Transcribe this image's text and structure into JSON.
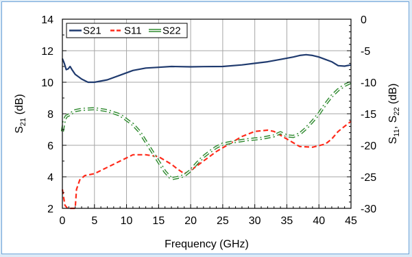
{
  "chart_data": {
    "type": "line",
    "xlabel": "Frequency (GHz)",
    "ylabel_left": {
      "base": "S",
      "sub": "21",
      "unit": " (dB)"
    },
    "ylabel_right": {
      "base1": "S",
      "sub1": "11",
      "sep": ", ",
      "base2": "S",
      "sub2": "22",
      "unit": " (dB)"
    },
    "xlim": [
      0,
      45
    ],
    "ylim_left": [
      2,
      14
    ],
    "ylim_right": [
      -30,
      0
    ],
    "x_ticks": [
      0,
      5,
      10,
      15,
      20,
      25,
      30,
      35,
      40,
      45
    ],
    "y_left_ticks": [
      2,
      4,
      6,
      8,
      10,
      12,
      14
    ],
    "y_right_ticks": [
      -30,
      -25,
      -20,
      -15,
      -10,
      -5,
      0
    ],
    "grid": true,
    "legend_position": "top-left",
    "series": [
      {
        "name": "S21",
        "axis": "left",
        "color": "#1f3a6e",
        "style": "solid",
        "points": [
          [
            0,
            11.5
          ],
          [
            0.3,
            11.2
          ],
          [
            0.6,
            10.8
          ],
          [
            0.9,
            10.85
          ],
          [
            1.2,
            11.0
          ],
          [
            1.5,
            10.8
          ],
          [
            2,
            10.5
          ],
          [
            3,
            10.2
          ],
          [
            4,
            10.0
          ],
          [
            5,
            10.0
          ],
          [
            7,
            10.15
          ],
          [
            9,
            10.45
          ],
          [
            11,
            10.75
          ],
          [
            13,
            10.9
          ],
          [
            15,
            10.95
          ],
          [
            17,
            11.0
          ],
          [
            20,
            10.98
          ],
          [
            22,
            10.99
          ],
          [
            25,
            11.0
          ],
          [
            28,
            11.1
          ],
          [
            30,
            11.2
          ],
          [
            32,
            11.3
          ],
          [
            34,
            11.45
          ],
          [
            36,
            11.6
          ],
          [
            37,
            11.7
          ],
          [
            38,
            11.75
          ],
          [
            39,
            11.7
          ],
          [
            40,
            11.6
          ],
          [
            41,
            11.45
          ],
          [
            42,
            11.3
          ],
          [
            43,
            11.05
          ],
          [
            44,
            11.02
          ],
          [
            45,
            11.1
          ]
        ]
      },
      {
        "name": "S11",
        "axis": "right",
        "color": "#ff2a1a",
        "style": "dashed",
        "points": [
          [
            0,
            -27
          ],
          [
            0.4,
            -29.5
          ],
          [
            0.8,
            -30
          ],
          [
            2,
            -30
          ],
          [
            2.2,
            -27
          ],
          [
            2.7,
            -25.5
          ],
          [
            3.5,
            -24.8
          ],
          [
            5,
            -24.5
          ],
          [
            7,
            -23.5
          ],
          [
            9,
            -22.5
          ],
          [
            11,
            -21.5
          ],
          [
            13,
            -21.5
          ],
          [
            15,
            -21.8
          ],
          [
            17,
            -23
          ],
          [
            18,
            -23.8
          ],
          [
            19,
            -24.5
          ],
          [
            20,
            -24.0
          ],
          [
            22,
            -22.5
          ],
          [
            24,
            -21
          ],
          [
            26,
            -19.8
          ],
          [
            28,
            -18.6
          ],
          [
            30,
            -17.8
          ],
          [
            32,
            -17.6
          ],
          [
            33,
            -17.8
          ],
          [
            35,
            -19.0
          ],
          [
            37,
            -20.2
          ],
          [
            39,
            -20.3
          ],
          [
            41,
            -19.8
          ],
          [
            42,
            -19.0
          ],
          [
            43,
            -17.8
          ],
          [
            44,
            -17.0
          ],
          [
            45,
            -16.2
          ]
        ]
      },
      {
        "name": "S22",
        "axis": "right",
        "color": "#2f8a2f",
        "style": "dash-dot",
        "points": [
          [
            0,
            -17.8
          ],
          [
            0.3,
            -16.0
          ],
          [
            0.6,
            -15.4
          ],
          [
            1,
            -15.2
          ],
          [
            2,
            -14.5
          ],
          [
            3,
            -14.3
          ],
          [
            5,
            -14.2
          ],
          [
            7,
            -14.5
          ],
          [
            9,
            -15.2
          ],
          [
            11,
            -16.7
          ],
          [
            12,
            -17.8
          ],
          [
            13,
            -19.4
          ],
          [
            14,
            -21.0
          ],
          [
            15,
            -22.6
          ],
          [
            16,
            -24.2
          ],
          [
            17,
            -25.3
          ],
          [
            18,
            -25.1
          ],
          [
            19,
            -24.8
          ],
          [
            20,
            -24.0
          ],
          [
            21,
            -22.8
          ],
          [
            22,
            -21.8
          ],
          [
            23,
            -21.0
          ],
          [
            24,
            -20.3
          ],
          [
            25,
            -19.8
          ],
          [
            27,
            -19.4
          ],
          [
            29,
            -19.1
          ],
          [
            31,
            -18.9
          ],
          [
            33,
            -18.5
          ],
          [
            34,
            -18.0
          ],
          [
            35,
            -18.5
          ],
          [
            36,
            -18.6
          ],
          [
            37,
            -18.2
          ],
          [
            38,
            -17.3
          ],
          [
            39,
            -16.2
          ],
          [
            40,
            -15.0
          ],
          [
            41,
            -13.5
          ],
          [
            42,
            -12.2
          ],
          [
            43,
            -11.2
          ],
          [
            44,
            -10.5
          ],
          [
            45,
            -10.0
          ]
        ]
      }
    ]
  }
}
